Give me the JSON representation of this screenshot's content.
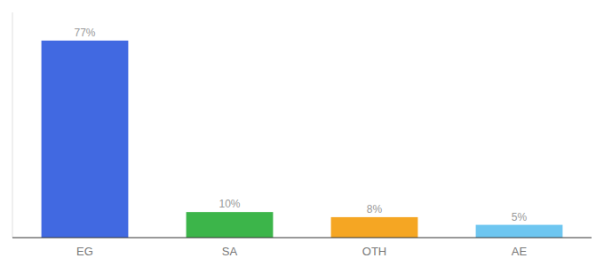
{
  "chart_data": {
    "type": "bar",
    "categories": [
      "EG",
      "SA",
      "OTH",
      "AE"
    ],
    "values": [
      77,
      10,
      8,
      5
    ],
    "value_labels": [
      "77%",
      "10%",
      "8%",
      "5%"
    ],
    "colors": [
      "#4169e1",
      "#3cb54a",
      "#f5a623",
      "#6ec6f0"
    ],
    "ylim": [
      0,
      88
    ],
    "data_labels": true,
    "tick_labels": "x"
  }
}
